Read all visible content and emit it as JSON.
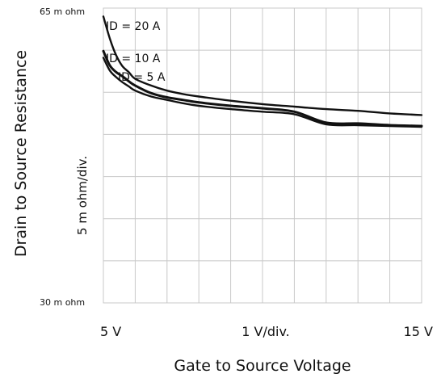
{
  "chart_data": {
    "type": "line",
    "title": "",
    "xlabel": "Gate to Source Voltage",
    "ylabel": "Drain to Source Resistance",
    "x_scale_label": "1  V/div.",
    "y_scale_label": "5 m ohm/div.",
    "x_tick_labels": {
      "left": "5  V",
      "right": "15  V"
    },
    "y_tick_labels": {
      "top": "65 m ohm",
      "bottom": "30 m ohm"
    },
    "xlim": [
      5,
      15
    ],
    "ylim": [
      30,
      65
    ],
    "x_divisions": 10,
    "y_divisions": 7,
    "grid": true,
    "x": [
      5.0,
      5.2,
      5.4,
      5.6,
      5.8,
      6.0,
      6.5,
      7.0,
      7.5,
      8.0,
      9.0,
      10.0,
      11.0,
      12.0,
      13.0,
      14.0,
      15.0
    ],
    "series": [
      {
        "name": "ID = 20 A",
        "values": [
          64.0,
          61.4,
          59.4,
          58.1,
          57.4,
          56.6,
          55.8,
          55.2,
          54.8,
          54.5,
          54.0,
          53.6,
          53.3,
          53.0,
          52.8,
          52.5,
          52.3
        ]
      },
      {
        "name": "ID = 10 A",
        "values": [
          59.9,
          58.2,
          57.4,
          56.9,
          56.3,
          55.8,
          54.9,
          54.4,
          54.1,
          53.8,
          53.4,
          53.1,
          52.7,
          51.4,
          51.3,
          51.1,
          51.0
        ]
      },
      {
        "name": "ID = 5 A",
        "values": [
          59.1,
          57.6,
          56.8,
          56.2,
          55.7,
          55.2,
          54.5,
          54.1,
          53.7,
          53.4,
          53.0,
          52.7,
          52.4,
          51.2,
          51.1,
          51.0,
          50.9
        ]
      }
    ]
  }
}
